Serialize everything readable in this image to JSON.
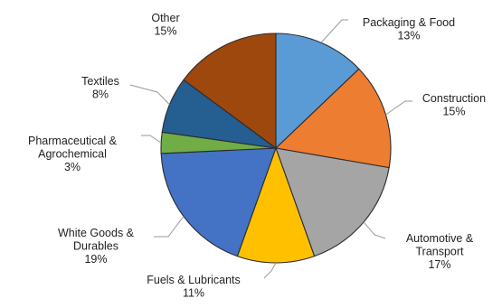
{
  "chart_data": {
    "type": "pie",
    "start_angle_deg": 0,
    "direction": "clockwise",
    "legend": "none",
    "slices": [
      {
        "label_lines": [
          "Packaging & Food"
        ],
        "percent_label": "13%",
        "value": 13,
        "color": "#5b9bd5"
      },
      {
        "label_lines": [
          "Construction"
        ],
        "percent_label": "15%",
        "value": 15,
        "color": "#ed7d31"
      },
      {
        "label_lines": [
          "Automotive &",
          "Transport"
        ],
        "percent_label": "17%",
        "value": 17,
        "color": "#a5a5a5"
      },
      {
        "label_lines": [
          "Fuels & Lubricants"
        ],
        "percent_label": "11%",
        "value": 11,
        "color": "#ffc000"
      },
      {
        "label_lines": [
          "White Goods &",
          "Durables"
        ],
        "percent_label": "19%",
        "value": 19,
        "color": "#4472c4"
      },
      {
        "label_lines": [
          "Pharmaceutical &",
          "Agrochemical"
        ],
        "percent_label": "3%",
        "value": 3,
        "color": "#70ad47"
      },
      {
        "label_lines": [
          "Textiles"
        ],
        "percent_label": "8%",
        "value": 8,
        "color": "#255e91"
      },
      {
        "label_lines": [
          "Other"
        ],
        "percent_label": "15%",
        "value": 15,
        "color": "#9e480e"
      }
    ]
  }
}
